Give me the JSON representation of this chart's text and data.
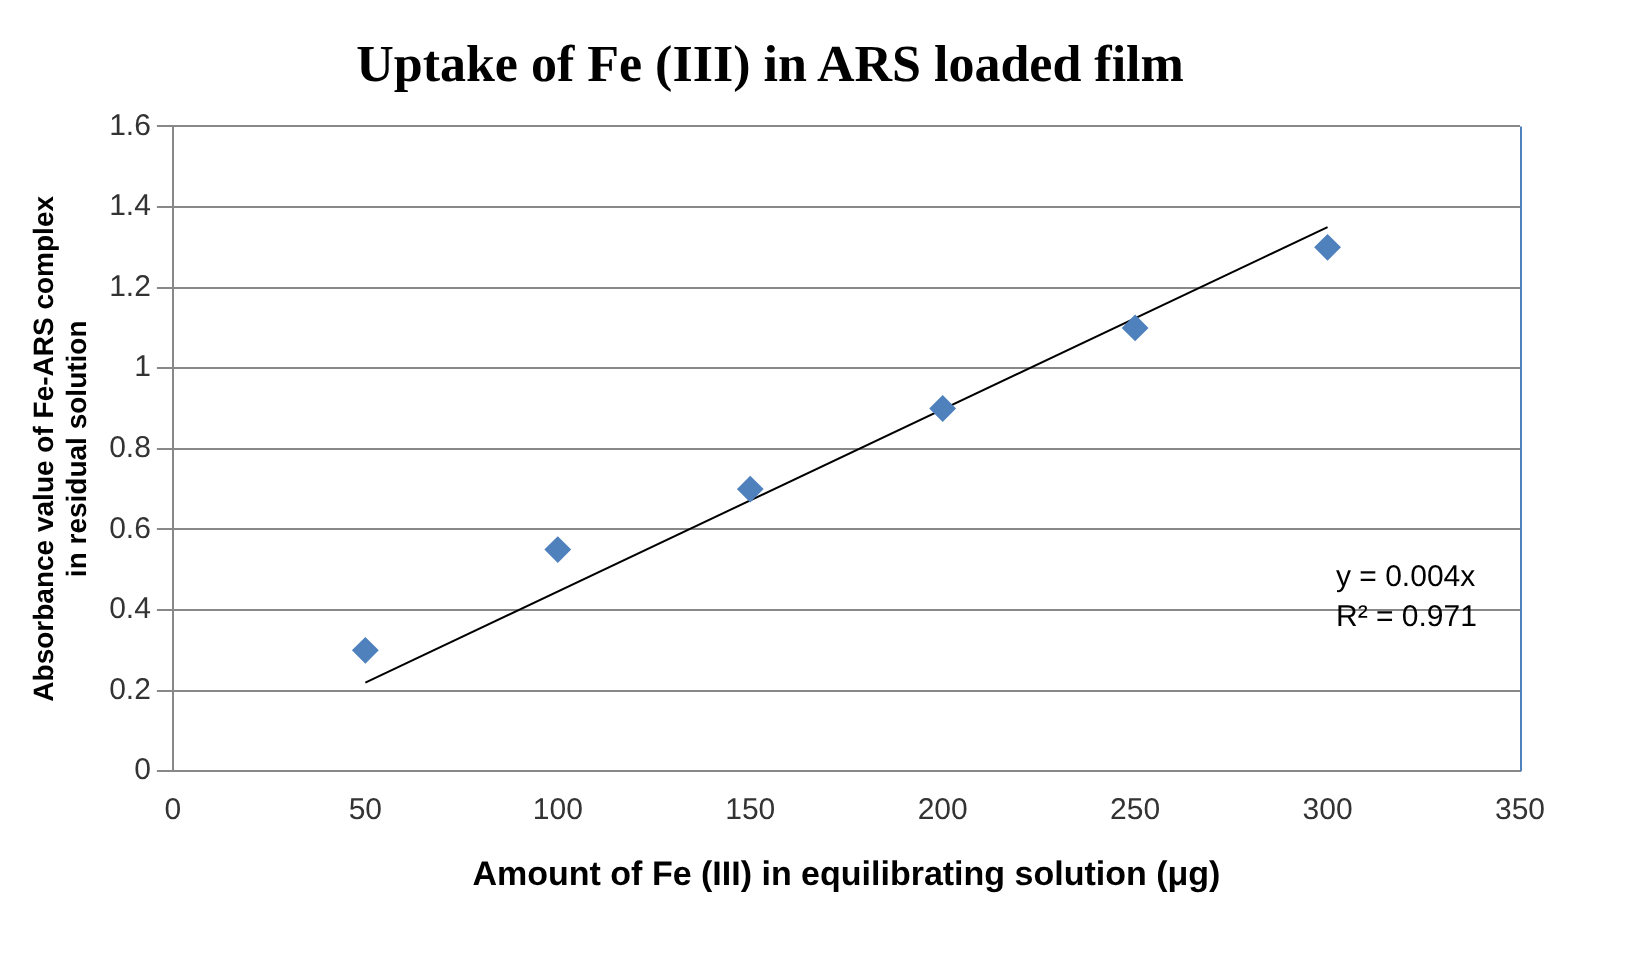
{
  "chart_data": {
    "type": "scatter",
    "title": "Uptake of Fe (III) in ARS loaded film",
    "xlabel": "Amount of Fe (III) in equilibrating solution (μg)",
    "ylabel": "Absorbance value of Fe-ARS complex in residual solution",
    "x": [
      50,
      100,
      150,
      200,
      250,
      300
    ],
    "series": [
      {
        "color": "#4f81bd",
        "values": [
          0.3,
          0.55,
          0.7,
          0.9,
          1.1,
          1.3
        ]
      },
      {
        "type": "line",
        "color": "#000000",
        "x": [
          50,
          300
        ],
        "values": [
          0.22,
          1.35
        ],
        "marker": "none"
      }
    ],
    "xlim": [
      0,
      350
    ],
    "xticks": [
      0,
      50,
      100,
      150,
      200,
      250,
      300,
      350
    ],
    "ylim": [
      0,
      1.6
    ],
    "yticks": [
      0,
      0.2,
      0.4,
      0.6,
      0.8,
      1,
      1.2,
      1.4,
      1.6
    ],
    "grid": "y",
    "legend": false,
    "marker": "diamond",
    "annotations": [
      "y = 0.004x",
      "R² = 0.971"
    ]
  }
}
